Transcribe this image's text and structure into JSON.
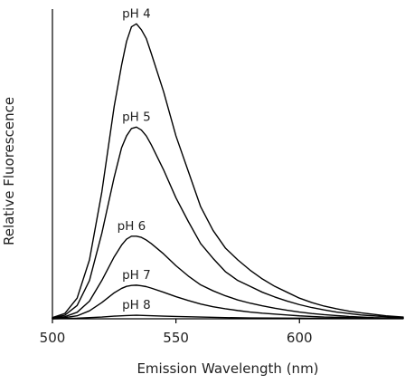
{
  "chart_data": {
    "type": "line",
    "title": "",
    "xlabel": "Emission Wavelength (nm)",
    "ylabel": "Relative Fluorescence",
    "xlim": [
      500,
      642
    ],
    "ylim": [
      0,
      1.05
    ],
    "xticks": [
      500,
      550,
      600
    ],
    "grid": false,
    "legend": "none",
    "series": [
      {
        "name": "pH 4",
        "x": [
          500,
          505,
          510,
          515,
          520,
          525,
          528,
          530,
          532,
          534,
          536,
          538,
          540,
          545,
          550,
          555,
          560,
          565,
          570,
          575,
          580,
          585,
          590,
          595,
          600,
          605,
          610,
          615,
          620,
          625,
          630,
          635,
          642
        ],
        "y": [
          0.004,
          0.018,
          0.07,
          0.2,
          0.43,
          0.72,
          0.86,
          0.94,
          0.99,
          1.0,
          0.98,
          0.95,
          0.9,
          0.77,
          0.62,
          0.5,
          0.38,
          0.3,
          0.24,
          0.2,
          0.165,
          0.135,
          0.11,
          0.09,
          0.07,
          0.055,
          0.043,
          0.034,
          0.026,
          0.02,
          0.015,
          0.01,
          0.006
        ]
      },
      {
        "name": "pH 5",
        "x": [
          500,
          505,
          510,
          515,
          520,
          525,
          528,
          530,
          532,
          534,
          536,
          538,
          540,
          545,
          550,
          555,
          560,
          565,
          570,
          575,
          580,
          585,
          590,
          595,
          600,
          605,
          610,
          615,
          620,
          625,
          630,
          635,
          642
        ],
        "y": [
          0.003,
          0.012,
          0.045,
          0.13,
          0.29,
          0.48,
          0.58,
          0.62,
          0.645,
          0.65,
          0.64,
          0.62,
          0.59,
          0.505,
          0.41,
          0.33,
          0.255,
          0.205,
          0.16,
          0.13,
          0.11,
          0.09,
          0.074,
          0.06,
          0.048,
          0.038,
          0.03,
          0.023,
          0.018,
          0.013,
          0.01,
          0.007,
          0.004
        ]
      },
      {
        "name": "pH 6",
        "x": [
          500,
          505,
          510,
          515,
          520,
          525,
          528,
          530,
          532,
          534,
          536,
          538,
          540,
          545,
          550,
          555,
          560,
          565,
          570,
          575,
          580,
          585,
          590,
          595,
          600,
          605,
          610,
          615,
          620,
          625,
          630,
          635,
          642
        ],
        "y": [
          0.002,
          0.007,
          0.022,
          0.06,
          0.13,
          0.21,
          0.25,
          0.27,
          0.28,
          0.28,
          0.276,
          0.267,
          0.255,
          0.22,
          0.18,
          0.145,
          0.115,
          0.095,
          0.078,
          0.064,
          0.053,
          0.044,
          0.036,
          0.029,
          0.023,
          0.018,
          0.014,
          0.011,
          0.008,
          0.006,
          0.004,
          0.003,
          0.002
        ]
      },
      {
        "name": "pH 7",
        "x": [
          500,
          505,
          510,
          515,
          520,
          525,
          528,
          530,
          532,
          534,
          536,
          538,
          540,
          545,
          550,
          555,
          560,
          565,
          570,
          575,
          580,
          585,
          590,
          595,
          600,
          605,
          610,
          615,
          620,
          625,
          630,
          635,
          642
        ],
        "y": [
          0.001,
          0.004,
          0.01,
          0.027,
          0.055,
          0.088,
          0.103,
          0.11,
          0.113,
          0.114,
          0.112,
          0.109,
          0.104,
          0.09,
          0.075,
          0.062,
          0.05,
          0.041,
          0.034,
          0.028,
          0.023,
          0.019,
          0.016,
          0.013,
          0.01,
          0.008,
          0.006,
          0.005,
          0.004,
          0.003,
          0.002,
          0.001,
          0.001
        ]
      },
      {
        "name": "pH 8",
        "x": [
          500,
          510,
          520,
          525,
          530,
          534,
          538,
          545,
          550,
          560,
          570,
          580,
          590,
          600,
          610,
          620,
          630,
          642
        ],
        "y": [
          0.0,
          0.002,
          0.006,
          0.009,
          0.011,
          0.012,
          0.011,
          0.009,
          0.008,
          0.006,
          0.004,
          0.003,
          0.0025,
          0.002,
          0.0015,
          0.001,
          0.0008,
          0.0005
        ]
      }
    ]
  }
}
